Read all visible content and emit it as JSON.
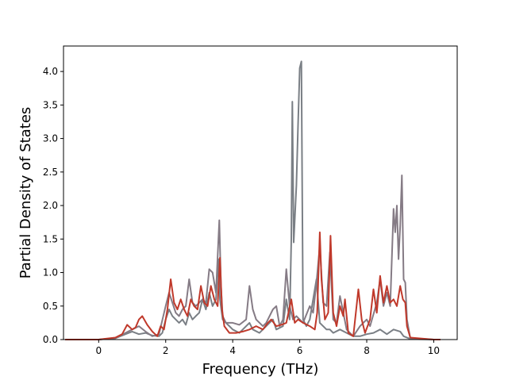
{
  "chart_data": {
    "type": "line",
    "title": "",
    "xlabel": "Frequency (THz)",
    "ylabel": "Partial Density of States",
    "xlim": [
      -1.05,
      10.7
    ],
    "ylim": [
      0,
      4.38
    ],
    "xticks": [
      0,
      2,
      4,
      6,
      8,
      10
    ],
    "yticks": [
      0.0,
      0.5,
      1.0,
      1.5,
      2.0,
      2.5,
      3.0,
      3.5,
      4.0
    ],
    "xtick_labels": [
      "0",
      "2",
      "4",
      "6",
      "8",
      "10"
    ],
    "ytick_labels": [
      "0.0",
      "0.5",
      "1.0",
      "1.5",
      "2.0",
      "2.5",
      "3.0",
      "3.5",
      "4.0"
    ],
    "grid": false,
    "legend": "none",
    "series": [
      {
        "color": "#7a7f85",
        "points": [
          [
            -1.0,
            0
          ],
          [
            0,
            0.0
          ],
          [
            0.5,
            0.02
          ],
          [
            0.8,
            0.08
          ],
          [
            1.0,
            0.12
          ],
          [
            1.2,
            0.08
          ],
          [
            1.4,
            0.1
          ],
          [
            1.6,
            0.06
          ],
          [
            1.8,
            0.05
          ],
          [
            1.9,
            0.1
          ],
          [
            2.0,
            0.3
          ],
          [
            2.1,
            0.45
          ],
          [
            2.2,
            0.35
          ],
          [
            2.3,
            0.3
          ],
          [
            2.4,
            0.25
          ],
          [
            2.5,
            0.3
          ],
          [
            2.6,
            0.22
          ],
          [
            2.7,
            0.4
          ],
          [
            2.8,
            0.3
          ],
          [
            2.9,
            0.35
          ],
          [
            3.0,
            0.4
          ],
          [
            3.1,
            0.6
          ],
          [
            3.2,
            0.45
          ],
          [
            3.3,
            0.7
          ],
          [
            3.4,
            0.5
          ],
          [
            3.5,
            0.6
          ],
          [
            3.58,
            1.2
          ],
          [
            3.62,
            0.6
          ],
          [
            3.7,
            0.3
          ],
          [
            3.8,
            0.25
          ],
          [
            3.9,
            0.2
          ],
          [
            4.0,
            0.15
          ],
          [
            4.2,
            0.1
          ],
          [
            4.4,
            0.2
          ],
          [
            4.5,
            0.25
          ],
          [
            4.6,
            0.15
          ],
          [
            4.8,
            0.1
          ],
          [
            5.0,
            0.2
          ],
          [
            5.2,
            0.3
          ],
          [
            5.3,
            0.15
          ],
          [
            5.5,
            0.2
          ],
          [
            5.6,
            0.6
          ],
          [
            5.7,
            0.3
          ],
          [
            5.75,
            1.5
          ],
          [
            5.78,
            3.55
          ],
          [
            5.82,
            1.45
          ],
          [
            5.9,
            2.3
          ],
          [
            5.95,
            3.2
          ],
          [
            6.0,
            4.05
          ],
          [
            6.05,
            4.15
          ],
          [
            6.1,
            0.3
          ],
          [
            6.2,
            0.2
          ],
          [
            6.3,
            0.3
          ],
          [
            6.4,
            0.6
          ],
          [
            6.5,
            0.9
          ],
          [
            6.6,
            0.25
          ],
          [
            6.7,
            0.2
          ],
          [
            6.8,
            0.15
          ],
          [
            6.9,
            0.15
          ],
          [
            7.0,
            0.1
          ],
          [
            7.2,
            0.15
          ],
          [
            7.4,
            0.1
          ],
          [
            7.6,
            0.05
          ],
          [
            7.8,
            0.05
          ],
          [
            8.0,
            0.08
          ],
          [
            8.2,
            0.1
          ],
          [
            8.4,
            0.15
          ],
          [
            8.6,
            0.08
          ],
          [
            8.8,
            0.15
          ],
          [
            9.0,
            0.12
          ],
          [
            9.1,
            0.05
          ],
          [
            9.3,
            0.01
          ],
          [
            10.0,
            0.0
          ],
          [
            10.2,
            0.0
          ]
        ]
      },
      {
        "color": "#857b85",
        "points": [
          [
            -1.0,
            0
          ],
          [
            0,
            0.0
          ],
          [
            0.5,
            0.02
          ],
          [
            0.8,
            0.1
          ],
          [
            1.0,
            0.15
          ],
          [
            1.2,
            0.2
          ],
          [
            1.4,
            0.12
          ],
          [
            1.6,
            0.05
          ],
          [
            1.8,
            0.08
          ],
          [
            2.0,
            0.5
          ],
          [
            2.1,
            0.7
          ],
          [
            2.2,
            0.55
          ],
          [
            2.3,
            0.4
          ],
          [
            2.4,
            0.35
          ],
          [
            2.5,
            0.45
          ],
          [
            2.6,
            0.5
          ],
          [
            2.7,
            0.9
          ],
          [
            2.8,
            0.55
          ],
          [
            2.9,
            0.5
          ],
          [
            3.0,
            0.55
          ],
          [
            3.1,
            0.6
          ],
          [
            3.2,
            0.55
          ],
          [
            3.3,
            1.05
          ],
          [
            3.4,
            1.0
          ],
          [
            3.5,
            0.7
          ],
          [
            3.6,
            1.78
          ],
          [
            3.65,
            0.8
          ],
          [
            3.7,
            0.35
          ],
          [
            3.8,
            0.25
          ],
          [
            4.0,
            0.25
          ],
          [
            4.2,
            0.22
          ],
          [
            4.4,
            0.3
          ],
          [
            4.5,
            0.8
          ],
          [
            4.6,
            0.45
          ],
          [
            4.7,
            0.3
          ],
          [
            4.9,
            0.2
          ],
          [
            5.0,
            0.25
          ],
          [
            5.2,
            0.45
          ],
          [
            5.3,
            0.5
          ],
          [
            5.4,
            0.2
          ],
          [
            5.5,
            0.3
          ],
          [
            5.6,
            1.05
          ],
          [
            5.7,
            0.5
          ],
          [
            5.8,
            0.3
          ],
          [
            5.9,
            0.35
          ],
          [
            6.0,
            0.3
          ],
          [
            6.1,
            0.25
          ],
          [
            6.3,
            0.5
          ],
          [
            6.4,
            0.4
          ],
          [
            6.5,
            0.85
          ],
          [
            6.6,
            1.4
          ],
          [
            6.7,
            0.55
          ],
          [
            6.8,
            0.5
          ],
          [
            6.9,
            1.3
          ],
          [
            7.0,
            0.3
          ],
          [
            7.1,
            0.25
          ],
          [
            7.2,
            0.65
          ],
          [
            7.3,
            0.4
          ],
          [
            7.4,
            0.15
          ],
          [
            7.6,
            0.05
          ],
          [
            7.8,
            0.2
          ],
          [
            8.0,
            0.3
          ],
          [
            8.1,
            0.2
          ],
          [
            8.3,
            0.55
          ],
          [
            8.4,
            0.9
          ],
          [
            8.5,
            0.5
          ],
          [
            8.6,
            0.7
          ],
          [
            8.7,
            0.5
          ],
          [
            8.8,
            1.95
          ],
          [
            8.85,
            1.6
          ],
          [
            8.9,
            2.0
          ],
          [
            8.95,
            1.2
          ],
          [
            9.0,
            1.7
          ],
          [
            9.05,
            2.45
          ],
          [
            9.1,
            0.9
          ],
          [
            9.15,
            0.85
          ],
          [
            9.2,
            0.3
          ],
          [
            9.3,
            0.02
          ],
          [
            10.0,
            0.0
          ],
          [
            10.2,
            0.0
          ]
        ]
      },
      {
        "color": "#c0392b",
        "points": [
          [
            -1.0,
            0
          ],
          [
            0,
            0.0
          ],
          [
            0.5,
            0.03
          ],
          [
            0.7,
            0.08
          ],
          [
            0.85,
            0.22
          ],
          [
            1.0,
            0.15
          ],
          [
            1.1,
            0.18
          ],
          [
            1.2,
            0.3
          ],
          [
            1.3,
            0.35
          ],
          [
            1.45,
            0.22
          ],
          [
            1.6,
            0.12
          ],
          [
            1.75,
            0.05
          ],
          [
            1.85,
            0.2
          ],
          [
            1.95,
            0.15
          ],
          [
            2.05,
            0.45
          ],
          [
            2.15,
            0.9
          ],
          [
            2.25,
            0.55
          ],
          [
            2.35,
            0.45
          ],
          [
            2.45,
            0.6
          ],
          [
            2.55,
            0.45
          ],
          [
            2.65,
            0.35
          ],
          [
            2.75,
            0.6
          ],
          [
            2.85,
            0.5
          ],
          [
            2.95,
            0.45
          ],
          [
            3.05,
            0.8
          ],
          [
            3.15,
            0.55
          ],
          [
            3.25,
            0.5
          ],
          [
            3.35,
            0.8
          ],
          [
            3.45,
            0.6
          ],
          [
            3.55,
            0.5
          ],
          [
            3.62,
            1.22
          ],
          [
            3.68,
            0.45
          ],
          [
            3.75,
            0.2
          ],
          [
            3.9,
            0.1
          ],
          [
            4.1,
            0.1
          ],
          [
            4.3,
            0.12
          ],
          [
            4.5,
            0.15
          ],
          [
            4.7,
            0.2
          ],
          [
            4.9,
            0.15
          ],
          [
            5.05,
            0.25
          ],
          [
            5.15,
            0.3
          ],
          [
            5.3,
            0.2
          ],
          [
            5.45,
            0.22
          ],
          [
            5.6,
            0.25
          ],
          [
            5.75,
            0.6
          ],
          [
            5.85,
            0.25
          ],
          [
            5.95,
            0.3
          ],
          [
            6.1,
            0.25
          ],
          [
            6.3,
            0.2
          ],
          [
            6.45,
            0.15
          ],
          [
            6.52,
            0.4
          ],
          [
            6.6,
            1.6
          ],
          [
            6.65,
            0.9
          ],
          [
            6.75,
            0.3
          ],
          [
            6.85,
            0.4
          ],
          [
            6.92,
            1.55
          ],
          [
            7.0,
            0.4
          ],
          [
            7.1,
            0.2
          ],
          [
            7.2,
            0.5
          ],
          [
            7.3,
            0.35
          ],
          [
            7.35,
            0.6
          ],
          [
            7.45,
            0.1
          ],
          [
            7.6,
            0.05
          ],
          [
            7.75,
            0.75
          ],
          [
            7.85,
            0.3
          ],
          [
            7.95,
            0.1
          ],
          [
            8.1,
            0.3
          ],
          [
            8.2,
            0.75
          ],
          [
            8.3,
            0.4
          ],
          [
            8.4,
            0.95
          ],
          [
            8.5,
            0.55
          ],
          [
            8.6,
            0.8
          ],
          [
            8.7,
            0.55
          ],
          [
            8.8,
            0.6
          ],
          [
            8.9,
            0.5
          ],
          [
            9.0,
            0.8
          ],
          [
            9.08,
            0.6
          ],
          [
            9.15,
            0.55
          ],
          [
            9.2,
            0.2
          ],
          [
            9.3,
            0.03
          ],
          [
            10.0,
            0.0
          ],
          [
            10.2,
            0.0
          ]
        ]
      }
    ]
  }
}
